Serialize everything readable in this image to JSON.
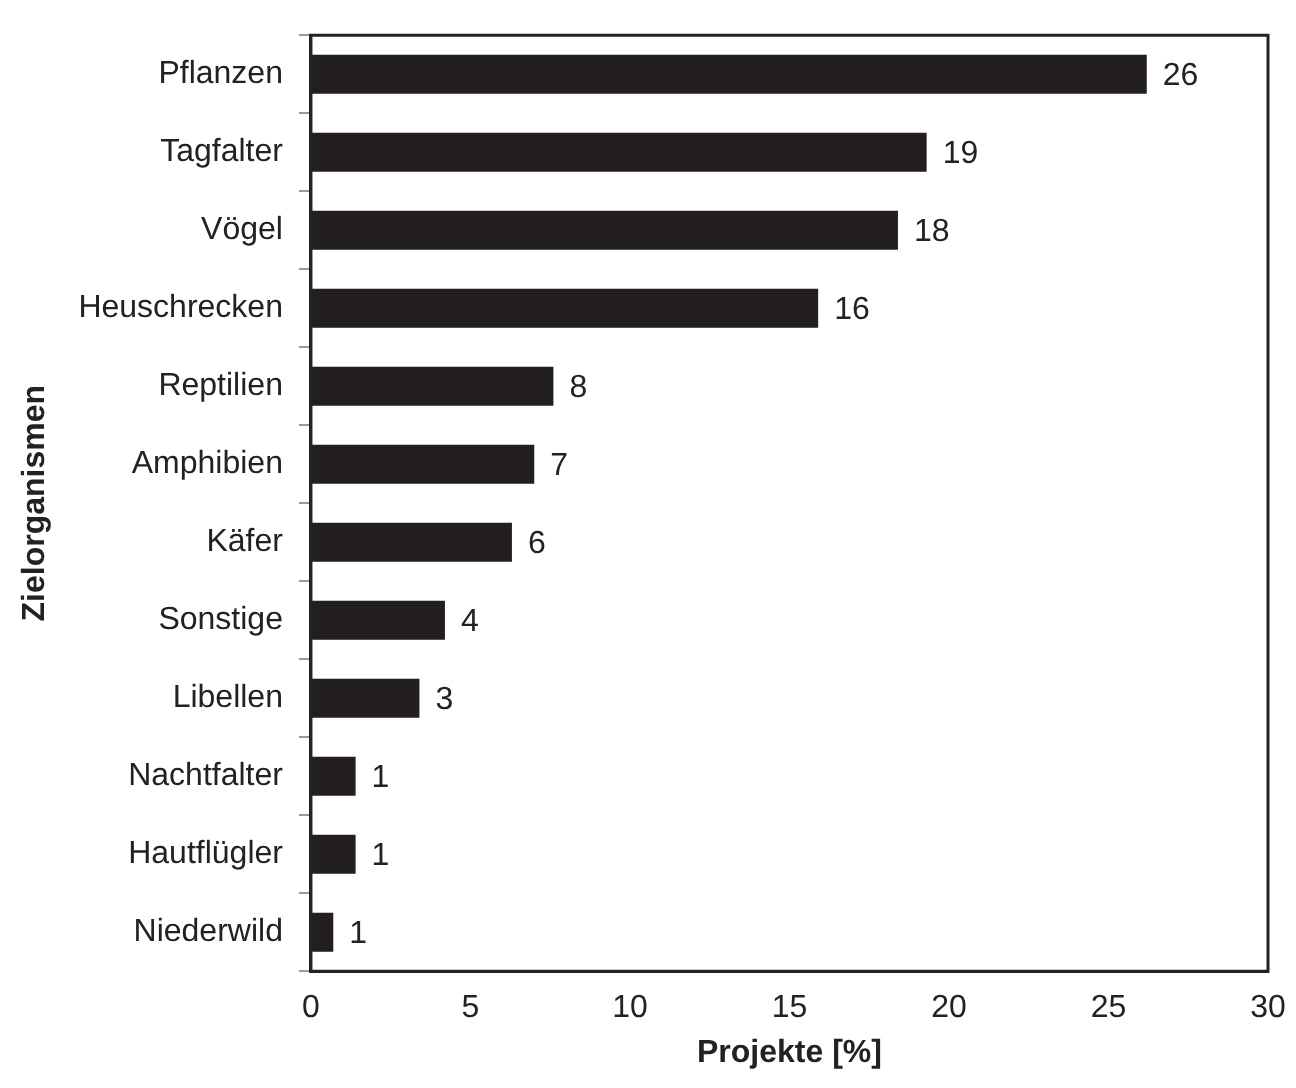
{
  "chart_data": {
    "type": "bar",
    "orientation": "horizontal",
    "xlabel": "Projekte [%]",
    "ylabel": "Zielorganismen",
    "categories": [
      "Pflanzen",
      "Tagfalter",
      "Vögel",
      "Heuschrecken",
      "Reptilien",
      "Amphibien",
      "Käfer",
      "Sonstige",
      "Libellen",
      "Nachtfalter",
      "Hautflügler",
      "Niederwild"
    ],
    "values": [
      26.2,
      19.3,
      18.4,
      15.9,
      7.6,
      7.0,
      6.3,
      4.2,
      3.4,
      1.4,
      1.4,
      0.7
    ],
    "value_labels": [
      "26",
      "19",
      "18",
      "16",
      "8",
      "7",
      "6",
      "4",
      "3",
      "1",
      "1",
      "1"
    ],
    "color": "#231f20",
    "xlim": [
      0,
      30
    ],
    "xticks": [
      0,
      5,
      10,
      15,
      20,
      25,
      30
    ],
    "grid": false,
    "legend": false
  }
}
